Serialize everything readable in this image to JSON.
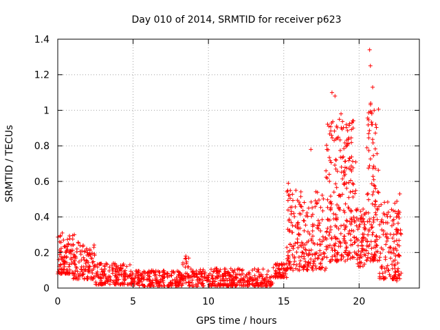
{
  "chart_data": {
    "type": "scatter",
    "title": "Day 010 of 2014, SRMTID for receiver p623",
    "xlabel": "GPS time / hours",
    "ylabel": "SRMTID / TECUs",
    "xlim": [
      0,
      24
    ],
    "ylim": [
      0,
      1.4
    ],
    "x_ticks": [
      0,
      5,
      10,
      15,
      20
    ],
    "x_tick_labels": [
      "0",
      "5",
      "10",
      "15",
      "20"
    ],
    "y_ticks": [
      0,
      0.2,
      0.4,
      0.6,
      0.8,
      1.0,
      1.2,
      1.4
    ],
    "y_tick_labels": [
      "0",
      "0.2",
      "0.4",
      "0.6",
      "0.8",
      "1",
      "1.2",
      "1.4"
    ],
    "grid": true,
    "marker": "+",
    "color": "#ff0000",
    "envelope": [
      {
        "x_start": 0.0,
        "x_end": 1.0,
        "y_min": 0.08,
        "y_max": 0.3,
        "n": 90
      },
      {
        "x_start": 1.0,
        "x_end": 2.5,
        "y_min": 0.05,
        "y_max": 0.26,
        "n": 110
      },
      {
        "x_start": 2.5,
        "x_end": 5.0,
        "y_min": 0.02,
        "y_max": 0.14,
        "n": 160
      },
      {
        "x_start": 5.0,
        "x_end": 8.3,
        "y_min": 0.01,
        "y_max": 0.1,
        "n": 200
      },
      {
        "x_start": 8.3,
        "x_end": 8.7,
        "y_min": 0.03,
        "y_max": 0.17,
        "n": 25
      },
      {
        "x_start": 8.7,
        "x_end": 14.3,
        "y_min": 0.01,
        "y_max": 0.11,
        "n": 330
      },
      {
        "x_start": 14.3,
        "x_end": 15.2,
        "y_min": 0.06,
        "y_max": 0.14,
        "n": 60
      },
      {
        "x_start": 15.2,
        "x_end": 17.8,
        "y_min": 0.1,
        "y_max": 0.55,
        "n": 220
      },
      {
        "x_start": 17.8,
        "x_end": 19.8,
        "y_min": 0.15,
        "y_max": 0.95,
        "n": 250
      },
      {
        "x_start": 19.8,
        "x_end": 20.5,
        "y_min": 0.12,
        "y_max": 0.45,
        "n": 70
      },
      {
        "x_start": 20.5,
        "x_end": 21.3,
        "y_min": 0.15,
        "y_max": 1.05,
        "n": 110
      },
      {
        "x_start": 21.3,
        "x_end": 22.8,
        "y_min": 0.05,
        "y_max": 0.5,
        "n": 140
      }
    ],
    "notable_points": [
      {
        "x": 0.3,
        "y": 0.31
      },
      {
        "x": 1.1,
        "y": 0.3
      },
      {
        "x": 8.5,
        "y": 0.18
      },
      {
        "x": 15.3,
        "y": 0.59
      },
      {
        "x": 16.8,
        "y": 0.78
      },
      {
        "x": 18.2,
        "y": 1.1
      },
      {
        "x": 18.4,
        "y": 1.08
      },
      {
        "x": 18.8,
        "y": 0.98
      },
      {
        "x": 19.6,
        "y": 0.9
      },
      {
        "x": 20.7,
        "y": 1.34
      },
      {
        "x": 20.75,
        "y": 1.25
      },
      {
        "x": 20.9,
        "y": 1.13
      },
      {
        "x": 21.0,
        "y": 1.0
      },
      {
        "x": 21.1,
        "y": 0.92
      },
      {
        "x": 22.7,
        "y": 0.53
      },
      {
        "x": 22.5,
        "y": 0.04
      }
    ]
  }
}
